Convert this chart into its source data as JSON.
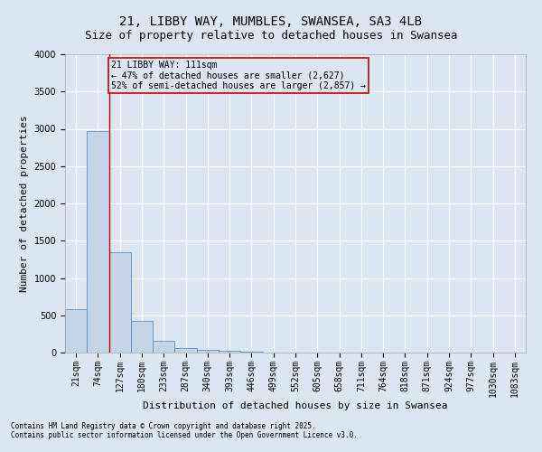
{
  "title1": "21, LIBBY WAY, MUMBLES, SWANSEA, SA3 4LB",
  "title2": "Size of property relative to detached houses in Swansea",
  "xlabel": "Distribution of detached houses by size in Swansea",
  "ylabel": "Number of detached properties",
  "categories": [
    "21sqm",
    "74sqm",
    "127sqm",
    "180sqm",
    "233sqm",
    "287sqm",
    "340sqm",
    "393sqm",
    "446sqm",
    "499sqm",
    "552sqm",
    "605sqm",
    "658sqm",
    "711sqm",
    "764sqm",
    "818sqm",
    "871sqm",
    "924sqm",
    "977sqm",
    "1030sqm",
    "1083sqm"
  ],
  "values": [
    580,
    2970,
    1350,
    430,
    155,
    65,
    35,
    20,
    10,
    5,
    5,
    2,
    1,
    1,
    0,
    0,
    0,
    0,
    0,
    0,
    0
  ],
  "bar_color": "#c5d5e8",
  "bar_edge_color": "#5b8fc9",
  "background_color": "#dce6f1",
  "grid_color": "#ffffff",
  "vline_x": 1.5,
  "vline_color": "#cc0000",
  "annotation_text": "21 LIBBY WAY: 111sqm\n← 47% of detached houses are smaller (2,627)\n52% of semi-detached houses are larger (2,857) →",
  "annotation_box_color": "#cc0000",
  "ylim": [
    0,
    4000
  ],
  "yticks": [
    0,
    500,
    1000,
    1500,
    2000,
    2500,
    3000,
    3500,
    4000
  ],
  "footnote1": "Contains HM Land Registry data © Crown copyright and database right 2025.",
  "footnote2": "Contains public sector information licensed under the Open Government Licence v3.0.",
  "title_fontsize": 10,
  "subtitle_fontsize": 9,
  "tick_fontsize": 7,
  "ylabel_fontsize": 8,
  "xlabel_fontsize": 8,
  "annotation_fontsize": 7,
  "footnote_fontsize": 5.5
}
